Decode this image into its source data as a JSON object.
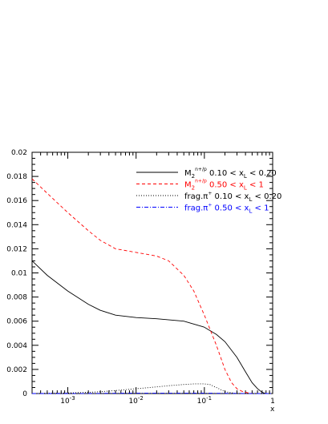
{
  "chart_data": {
    "type": "line",
    "title": "",
    "xlabel": "x",
    "ylabel": "",
    "xscale": "log",
    "xlim": [
      0.0003,
      1
    ],
    "ylim": [
      0,
      0.02
    ],
    "grid": false,
    "legend_position": "top-right",
    "x_ticks": [
      {
        "value": 0.001,
        "base": "10",
        "exp": "-3"
      },
      {
        "value": 0.01,
        "base": "10",
        "exp": "-2"
      },
      {
        "value": 0.1,
        "base": "10",
        "exp": "-1"
      },
      {
        "value": 1,
        "base": "1",
        "exp": ""
      }
    ],
    "y_ticks": [
      {
        "value": 0,
        "label": "0"
      },
      {
        "value": 0.002,
        "label": "0.002"
      },
      {
        "value": 0.004,
        "label": "0.004"
      },
      {
        "value": 0.006,
        "label": "0.006"
      },
      {
        "value": 0.008,
        "label": "0.008"
      },
      {
        "value": 0.01,
        "label": "0.01"
      },
      {
        "value": 0.012,
        "label": "0.012"
      },
      {
        "value": 0.014,
        "label": "0.014"
      },
      {
        "value": 0.016,
        "label": "0.016"
      },
      {
        "value": 0.018,
        "label": "0.018"
      },
      {
        "value": 0.02,
        "label": "0.02"
      }
    ],
    "series": [
      {
        "legend": {
          "base": "M",
          "sub": "2",
          "sup": "n+/p",
          "range": "0.10 < x",
          "rsub": "L",
          "rend": "< 0.20"
        },
        "color": "#000000",
        "dash": "solid",
        "x": [
          0.0003,
          0.0005,
          0.001,
          0.002,
          0.003,
          0.005,
          0.01,
          0.02,
          0.05,
          0.1,
          0.15,
          0.2,
          0.3,
          0.4,
          0.5,
          0.6,
          0.7,
          0.8,
          0.9
        ],
        "y": [
          0.011,
          0.0098,
          0.0085,
          0.0074,
          0.0069,
          0.0065,
          0.0063,
          0.0062,
          0.006,
          0.0055,
          0.0049,
          0.0043,
          0.003,
          0.0018,
          0.0009,
          0.0004,
          0.0001,
          0.0,
          0.0
        ]
      },
      {
        "legend": {
          "base": "M",
          "sub": "2",
          "sup": "n+/p",
          "range": "0.50 < x",
          "rsub": "L",
          "rend": "< 1"
        },
        "color": "#ff0000",
        "dash": "dashed",
        "x": [
          0.0003,
          0.0005,
          0.001,
          0.002,
          0.003,
          0.005,
          0.01,
          0.02,
          0.03,
          0.05,
          0.07,
          0.1,
          0.15,
          0.2,
          0.25,
          0.3,
          0.35,
          0.4,
          0.5
        ],
        "y": [
          0.0178,
          0.0166,
          0.015,
          0.0135,
          0.0127,
          0.012,
          0.0117,
          0.0114,
          0.011,
          0.0098,
          0.0085,
          0.0065,
          0.004,
          0.002,
          0.0009,
          0.0004,
          0.0002,
          0.0001,
          0.0
        ]
      },
      {
        "legend": {
          "base": "frag.",
          "sub": "",
          "sup": "+",
          "pi": "π",
          "range": "0.10 < x",
          "rsub": "L",
          "rend": "< 0.20"
        },
        "color": "#000000",
        "dash": "dotted",
        "x": [
          0.0003,
          0.001,
          0.002,
          0.003,
          0.005,
          0.01,
          0.02,
          0.03,
          0.05,
          0.07,
          0.1,
          0.12,
          0.15,
          0.2,
          0.3
        ],
        "y": [
          0.0,
          5e-05,
          0.0001,
          0.00015,
          0.00025,
          0.0004,
          0.00055,
          0.00065,
          0.00075,
          0.0008,
          0.0008,
          0.00075,
          0.0005,
          0.00015,
          0.0
        ]
      },
      {
        "legend": {
          "base": "frag.",
          "sub": "",
          "sup": "+",
          "pi": "π",
          "range": "0.50 < x",
          "rsub": "L",
          "rend": "< 1"
        },
        "color": "#0000ff",
        "dash": "dashdot",
        "x": [
          0.0003,
          0.001,
          0.01,
          0.1,
          0.3,
          0.5,
          1
        ],
        "y": [
          0.0,
          0.0,
          3e-05,
          3e-05,
          1e-05,
          0.0,
          0.0
        ]
      }
    ]
  }
}
